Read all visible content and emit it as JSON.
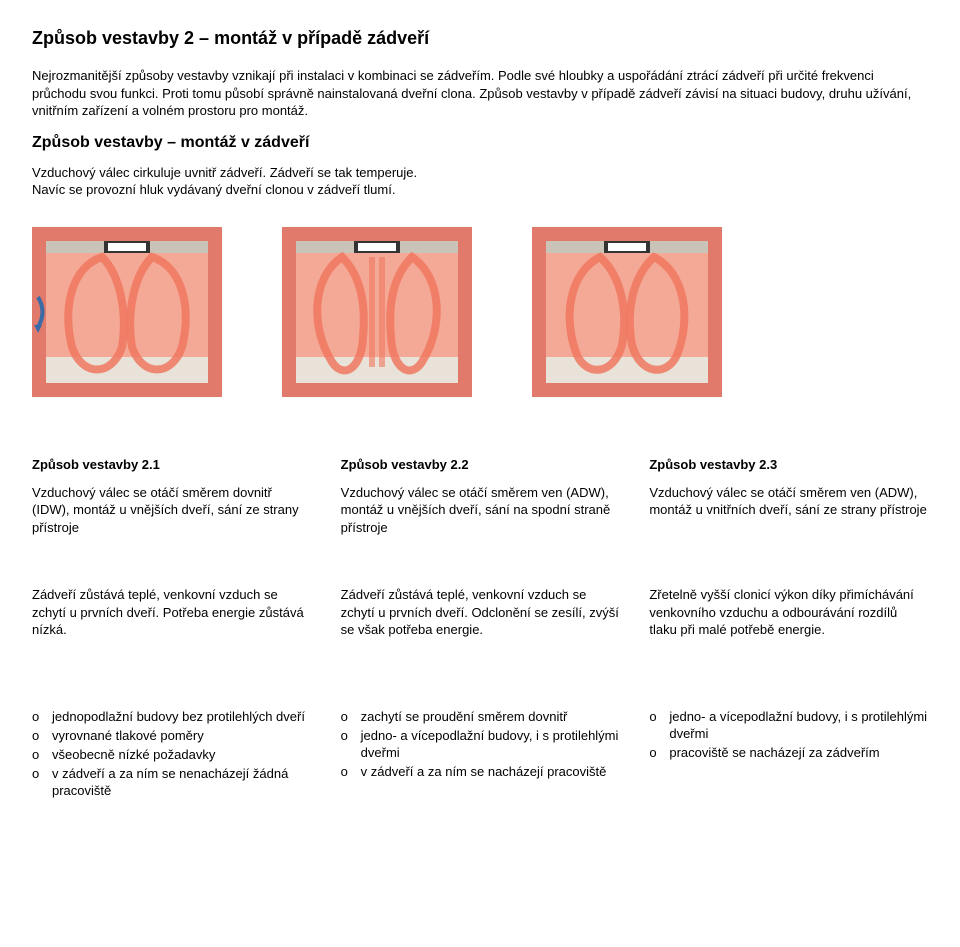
{
  "title": "Způsob vestavby 2 – montáž v případě zádveří",
  "intro": "Nejrozmanitější způsoby vestavby vznikají při instalaci v kombinaci se zádveřím. Podle své hloubky a uspořádání ztrácí zádveří při určité frekvenci průchodu svou funkci. Proti tomu působí správně nainstalovaná dveřní clona. Způsob vestavby v případě zádveří závisí na situaci budovy, druhu užívání, vnitřním zařízení a volném prostoru pro montáž.",
  "subTitle": "Způsob vestavby – montáž v zádveří",
  "subPara": "Vzduchový válec cirkuluje uvnitř zádveří. Zádveří se tak temperuje.\nNavíc se provozní hluk vydávaný dveřní clonou v zádveří tlumí.",
  "diagrams": {
    "bg": "#e17a6a",
    "overlay": "#f4a896",
    "floor": "#e8e2d8",
    "wall": "#c9c3b8",
    "unit": "#ffffff",
    "unitDark": "#333333",
    "flow": "#f07860",
    "arrowBlue": "#3a6aa8"
  },
  "variants": [
    {
      "heading": "Způsob vestavby 2.1",
      "desc": "Vzduchový válec se otáčí směrem dovnitř (IDW), montáž u vnějších dveří, sání ze strany přístroje",
      "note": "Zádveří zůstává teplé, venkovní vzduch se zchytí u prvních dveří. Potřeba energie zůstává nízká.",
      "bullets": [
        "jednopodlažní budovy bez protilehlých dveří",
        "vyrovnané tlakové poměry",
        "všeobecně nízké požadavky",
        "v zádveří a za ním se nenacházejí žádná pracoviště"
      ]
    },
    {
      "heading": "Způsob vestavby 2.2",
      "desc": "Vzduchový válec se otáčí směrem ven (ADW), montáž u vnějších dveří, sání na spodní straně přístroje",
      "note": "Zádveří zůstává teplé, venkovní vzduch se zchytí u prvních dveří. Odclonění se zesílí, zvýší se však potřeba energie.",
      "bullets": [
        "zachytí se proudění směrem dovnitř",
        "jedno- a vícepodlažní budovy, i s protilehlými dveřmi",
        "v zádveří a za ním se nacházejí pracoviště"
      ]
    },
    {
      "heading": "Způsob vestavby 2.3",
      "desc": "Vzduchový válec se otáčí směrem ven (ADW), montáž u vnitřních dveří, sání ze strany přístroje",
      "note": "Zřetelně vyšší clonicí výkon díky přimíchávání venkovního vzduchu a odbourávání rozdílů tlaku při malé potřebě energie.",
      "bullets": [
        "jedno- a vícepodlažní budovy, i s protilehlými dveřmi",
        "pracoviště se nacházejí za zádveřím"
      ]
    }
  ]
}
